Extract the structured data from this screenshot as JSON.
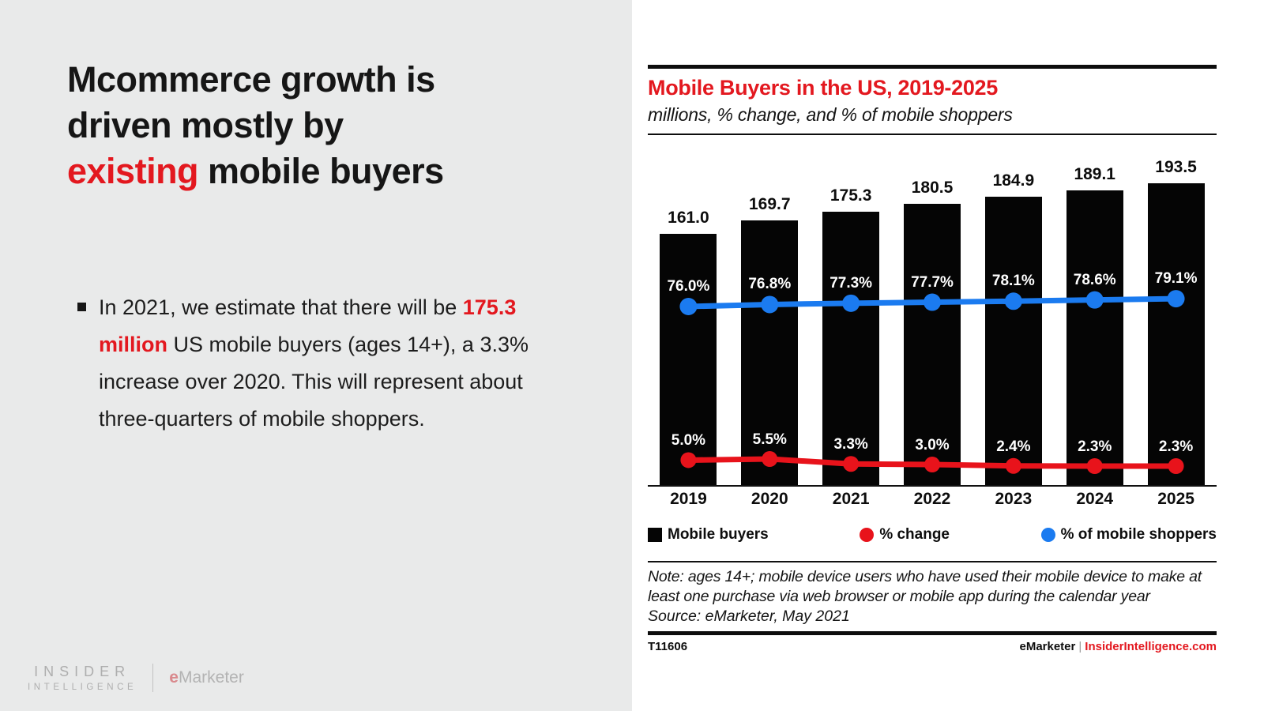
{
  "colors": {
    "accent_red": "#e3181f",
    "line_red": "#e8131b",
    "line_blue": "#1b7bf0",
    "bar_black": "#050505",
    "left_panel_bg": "#e9eaea"
  },
  "left": {
    "title_line1": "Mcommerce growth is",
    "title_line2": "driven mostly by",
    "title_line3_red": "existing",
    "title_line3_rest": " mobile buyers",
    "bullet_pre": "In 2021, we estimate that there will be ",
    "bullet_highlight": "175.3 million",
    "bullet_post": " US mobile buyers (ages 14+), a 3.3% increase over 2020. This will represent about three-quarters of mobile shoppers.",
    "logo_line1": "INSIDER",
    "logo_line2": "INTELLIGENCE",
    "logo_brand_e": "e",
    "logo_brand_rest": "Marketer"
  },
  "chart": {
    "title": "Mobile Buyers in the US, 2019-2025",
    "subtitle": "millions, % change, and % of mobile shoppers",
    "note": "Note: ages 14+; mobile device users who have used their mobile device to make at least one purchase via web browser or mobile app during the calendar year",
    "source": "Source: eMarketer, May 2021",
    "footer_id": "T11606",
    "footer_brand": "eMarketer",
    "footer_separator": "|",
    "footer_site": "InsiderIntelligence.com"
  },
  "chart_data": {
    "type": "bar",
    "title": "Mobile Buyers in the US, 2019-2025",
    "subtitle": "millions, % change, and % of mobile shoppers",
    "categories": [
      "2019",
      "2020",
      "2021",
      "2022",
      "2023",
      "2024",
      "2025"
    ],
    "series": [
      {
        "name": "Mobile buyers",
        "type": "bar",
        "unit": "millions",
        "color": "#050505",
        "values": [
          161.0,
          169.7,
          175.3,
          180.5,
          184.9,
          189.1,
          193.5
        ]
      },
      {
        "name": "% change",
        "type": "line",
        "unit": "percent",
        "color": "#e8131b",
        "values": [
          5.0,
          5.5,
          3.3,
          3.0,
          2.4,
          2.3,
          2.3
        ]
      },
      {
        "name": "% of mobile shoppers",
        "type": "line",
        "unit": "percent",
        "color": "#1b7bf0",
        "values": [
          76.0,
          76.8,
          77.3,
          77.7,
          78.1,
          78.6,
          79.1
        ]
      }
    ],
    "ylim": [
      0,
      200
    ],
    "grid": false,
    "legend_position": "bottom"
  }
}
